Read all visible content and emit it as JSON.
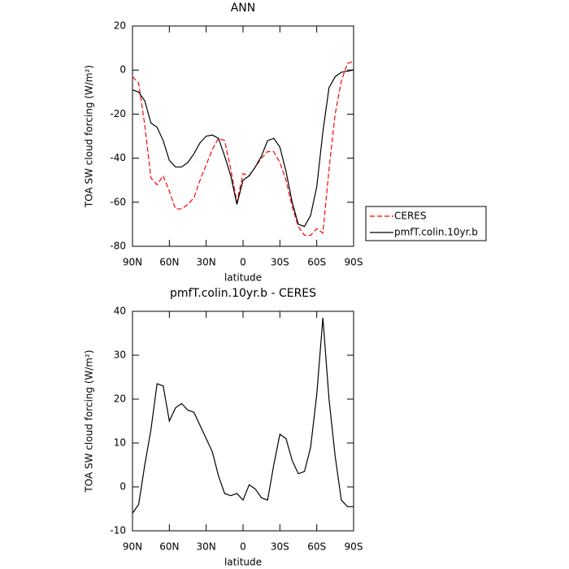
{
  "chart_data": [
    {
      "type": "line",
      "title": "ANN",
      "xlabel": "latitude",
      "ylabel": "TOA SW cloud forcing (W/m²)",
      "x": [
        90,
        85,
        80,
        75,
        70,
        65,
        60,
        55,
        50,
        45,
        40,
        35,
        30,
        25,
        20,
        15,
        10,
        5,
        0,
        -5,
        -10,
        -15,
        -20,
        -25,
        -30,
        -35,
        -40,
        -45,
        -50,
        -55,
        -60,
        -65,
        -70,
        -75,
        -80,
        -85,
        -90
      ],
      "series": [
        {
          "name": "CERES",
          "color": "#ff0000",
          "linestyle": "dashed",
          "values": [
            -3,
            -6,
            -25,
            -49,
            -52,
            -48,
            -55,
            -63,
            -63,
            -61,
            -58,
            -50,
            -43,
            -36,
            -31,
            -32,
            -45,
            -60,
            -47,
            -48,
            -44,
            -40,
            -37,
            -37,
            -42,
            -50,
            -62,
            -71,
            -75,
            -75,
            -72,
            -74,
            -45,
            -20,
            -5,
            3,
            4
          ]
        },
        {
          "name": "pmfT.colin.10yr.b",
          "color": "#000000",
          "linestyle": "solid",
          "values": [
            -9,
            -10,
            -14,
            -24,
            -26,
            -32,
            -41,
            -44,
            -44,
            -42,
            -38,
            -33,
            -30,
            -29.5,
            -31,
            -39,
            -48,
            -61,
            -50,
            -48,
            -44,
            -39,
            -32,
            -31,
            -35,
            -46,
            -60,
            -70,
            -71,
            -66,
            -53,
            -28,
            -8,
            -3,
            -1,
            -0.5,
            0
          ]
        }
      ],
      "xlim": [
        90,
        -90
      ],
      "xticks": [
        {
          "value": 90,
          "label": "90N"
        },
        {
          "value": 60,
          "label": "60N"
        },
        {
          "value": 30,
          "label": "30N"
        },
        0,
        {
          "value": -30,
          "label": "30S"
        },
        {
          "value": -60,
          "label": "60S"
        },
        {
          "value": -90,
          "label": "90S"
        }
      ],
      "ylim": [
        -80,
        20
      ],
      "yticks": [
        20,
        0,
        -20,
        -40,
        -60,
        -80
      ],
      "legend": "right"
    },
    {
      "type": "line",
      "title": "pmfT.colin.10yr.b - CERES",
      "xlabel": "latitude",
      "ylabel": "TOA SW cloud forcing (W/m²)",
      "x": [
        90,
        85,
        80,
        75,
        70,
        65,
        60,
        55,
        50,
        45,
        40,
        35,
        30,
        25,
        20,
        15,
        10,
        5,
        0,
        -5,
        -10,
        -15,
        -20,
        -25,
        -30,
        -35,
        -40,
        -45,
        -50,
        -55,
        -60,
        -65,
        -70,
        -75,
        -80,
        -85,
        -90
      ],
      "series": [
        {
          "color": "#000000",
          "linestyle": "solid",
          "values": [
            -6,
            -4,
            5,
            13,
            23.5,
            23,
            15,
            18,
            19,
            17.5,
            17,
            14,
            11,
            8,
            2.5,
            -1.5,
            -2,
            -1.5,
            -3,
            0.5,
            -0.5,
            -2.5,
            -3,
            5,
            12,
            11,
            6,
            3,
            3.5,
            9,
            21,
            38.5,
            20,
            7,
            -3,
            -4.5,
            -4.5
          ]
        }
      ],
      "xlim": [
        90,
        -90
      ],
      "xticks": [
        {
          "value": 90,
          "label": "90N"
        },
        {
          "value": 60,
          "label": "60N"
        },
        {
          "value": 30,
          "label": "30N"
        },
        0,
        {
          "value": -30,
          "label": "30S"
        },
        {
          "value": -60,
          "label": "60S"
        },
        {
          "value": -90,
          "label": "90S"
        }
      ],
      "ylim": [
        -10,
        40
      ],
      "yticks": [
        40,
        30,
        20,
        10,
        0,
        -10
      ]
    }
  ]
}
